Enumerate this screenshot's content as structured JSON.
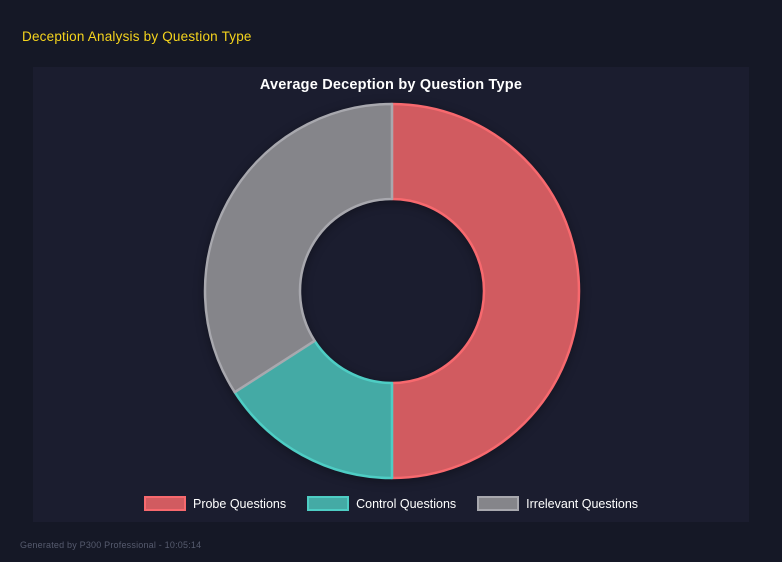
{
  "page": {
    "title": "Deception Analysis by Question Type",
    "footer": "Generated by P300 Professional - 10:05:14"
  },
  "colors": {
    "page_background": "#151826",
    "panel_background": "#1b1d2f",
    "page_title_text": "#f5d41d",
    "chart_text": "#ffffff",
    "footer_text": "#565b6e"
  },
  "chart_data": {
    "type": "pie",
    "variant": "donut",
    "title": "Average Deception by Question Type",
    "categories": [
      "Probe Questions",
      "Control Questions",
      "Irrelevant Questions"
    ],
    "values": [
      50,
      15.9,
      34.1
    ],
    "value_note": "percent of ring, estimated from arc angles; no numeric labels shown in chart",
    "start_angle_deg": 0,
    "direction": "clockwise",
    "cutout_ratio": 0.49,
    "legend_position": "bottom",
    "segment_fill_colors": [
      "#d15b60",
      "#44aaa5",
      "#85858a"
    ],
    "segment_border_colors": [
      "#f7696e",
      "#4ecdc4",
      "#a8a8ae"
    ]
  }
}
